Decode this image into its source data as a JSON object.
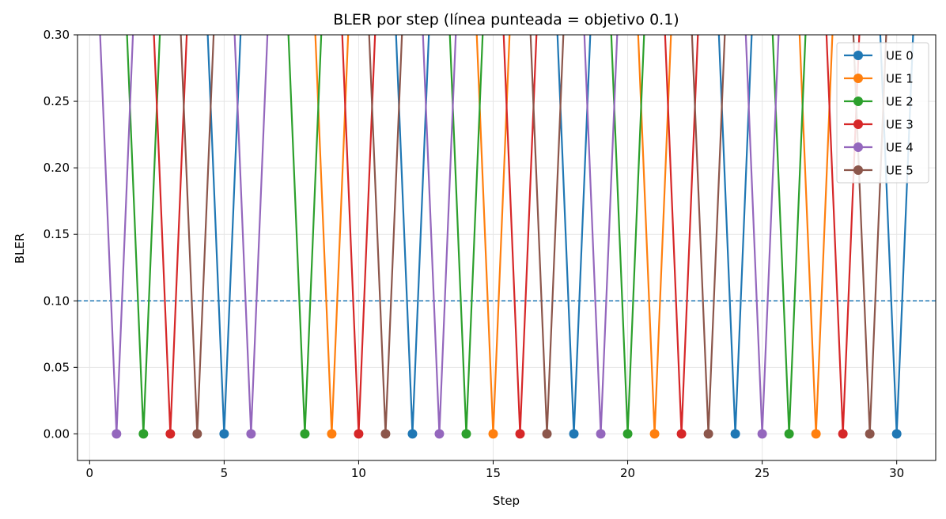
{
  "chart_data": {
    "type": "line",
    "title": "BLER por step (línea punteada = objetivo 0.1)",
    "xlabel": "Step",
    "ylabel": "BLER",
    "xlim": [
      -0.45,
      31.45
    ],
    "ylim": [
      -0.02,
      0.3
    ],
    "xticks": [
      0,
      5,
      10,
      15,
      20,
      25,
      30
    ],
    "yticks": [
      0.0,
      0.05,
      0.1,
      0.15,
      0.2,
      0.25,
      0.3
    ],
    "xtick_labels": [
      "0",
      "5",
      "10",
      "15",
      "20",
      "25",
      "30"
    ],
    "ytick_labels": [
      "0.00",
      "0.05",
      "0.10",
      "0.15",
      "0.20",
      "0.25",
      "0.30"
    ],
    "grid": true,
    "legend_position": "top-right",
    "target_line": {
      "y": 0.1,
      "style": "dashed",
      "color": "#1f77b4"
    },
    "series": [
      {
        "name": "UE 0",
        "color": "#1f77b4",
        "points": [
          [
            5,
            0.0
          ],
          [
            12,
            0.0
          ],
          [
            18,
            0.0
          ],
          [
            24,
            0.0
          ],
          [
            30,
            0.0
          ]
        ]
      },
      {
        "name": "UE 1",
        "color": "#ff7f0e",
        "points": [
          [
            9,
            0.0
          ],
          [
            15,
            0.0
          ],
          [
            21,
            0.0
          ],
          [
            27,
            0.0
          ]
        ]
      },
      {
        "name": "UE 2",
        "color": "#2ca02c",
        "points": [
          [
            2,
            0.0
          ],
          [
            8,
            0.0
          ],
          [
            14,
            0.0
          ],
          [
            20,
            0.0
          ],
          [
            26,
            0.0
          ]
        ]
      },
      {
        "name": "UE 3",
        "color": "#d62728",
        "points": [
          [
            3,
            0.0
          ],
          [
            10,
            0.0
          ],
          [
            16,
            0.0
          ],
          [
            22,
            0.0
          ],
          [
            28,
            0.0
          ]
        ]
      },
      {
        "name": "UE 4",
        "color": "#9467bd",
        "points": [
          [
            1,
            0.0
          ],
          [
            6,
            0.0
          ],
          [
            13,
            0.0
          ],
          [
            19,
            0.0
          ],
          [
            25,
            0.0
          ]
        ]
      },
      {
        "name": "UE 5",
        "color": "#8c564b",
        "points": [
          [
            4,
            0.0
          ],
          [
            11,
            0.0
          ],
          [
            17,
            0.0
          ],
          [
            23,
            0.0
          ],
          [
            29,
            0.0
          ]
        ]
      }
    ]
  }
}
